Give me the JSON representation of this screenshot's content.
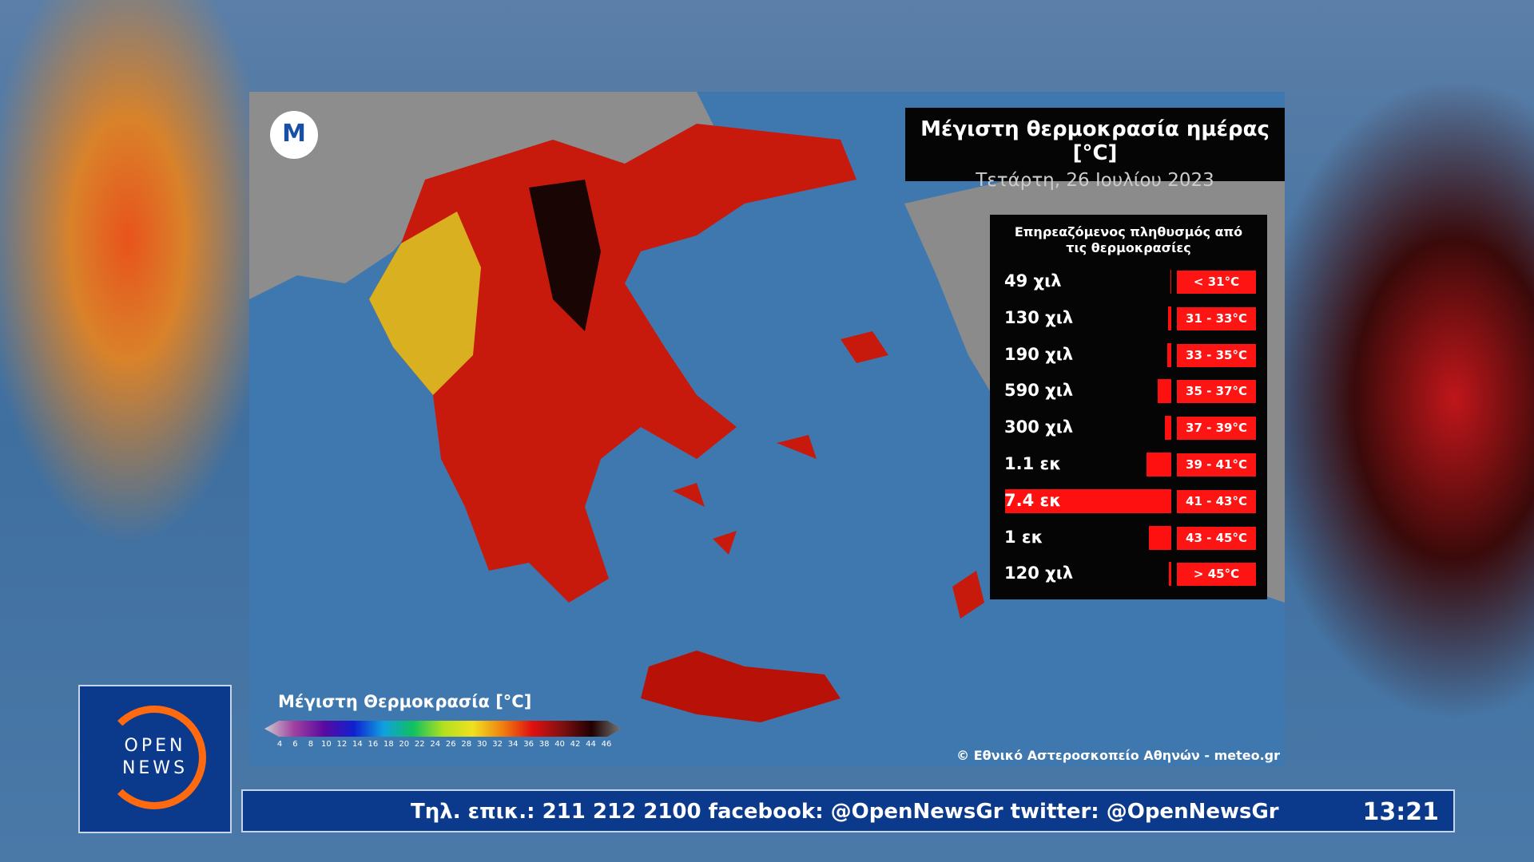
{
  "map": {
    "title": "Μέγιστη θερμοκρασία ημέρας [°C]",
    "subtitle": "Τετάρτη, 26 Ιουλίου 2023",
    "logo_letter": "M",
    "legend": {
      "title": "Μέγιστη Θερμοκρασία [°C]",
      "ticks": [
        4,
        6,
        8,
        10,
        12,
        14,
        16,
        18,
        20,
        22,
        24,
        26,
        28,
        30,
        32,
        34,
        36,
        38,
        40,
        42,
        44,
        46
      ]
    },
    "credit": "© Εθνικό Αστεροσκοπείο Αθηνών - meteo.gr"
  },
  "population_panel": {
    "title": "Επηρεαζόμενος πληθυσμός από τις θερμοκρασίες",
    "rows": [
      {
        "population": {
          "value": 49000,
          "label": "49 χιλ"
        },
        "range": "< 31°C"
      },
      {
        "population": {
          "value": 130000,
          "label": "130 χιλ"
        },
        "range": "31 - 33°C"
      },
      {
        "population": {
          "value": 190000,
          "label": "190 χιλ"
        },
        "range": "33 - 35°C"
      },
      {
        "population": {
          "value": 590000,
          "label": "590 χιλ"
        },
        "range": "35 - 37°C"
      },
      {
        "population": {
          "value": 300000,
          "label": "300 χιλ"
        },
        "range": "37 - 39°C"
      },
      {
        "population": {
          "value": 1100000,
          "label": "1.1 εκ"
        },
        "range": "39 - 41°C"
      },
      {
        "population": {
          "value": 7400000,
          "label": "7.4 εκ"
        },
        "range": "41 - 43°C"
      },
      {
        "population": {
          "value": 1000000,
          "label": "1 εκ"
        },
        "range": "43 - 45°C"
      },
      {
        "population": {
          "value": 120000,
          "label": "120 χιλ"
        },
        "range": "> 45°C"
      }
    ]
  },
  "channel": {
    "logo_line1": "OPEN",
    "logo_line2": "NEWS"
  },
  "ticker": {
    "text": "Τηλ. επικ.: 211 212 2100 facebook: @OpenNewsGr twitter: @OpenNewsGr",
    "clock": "13:21"
  }
}
